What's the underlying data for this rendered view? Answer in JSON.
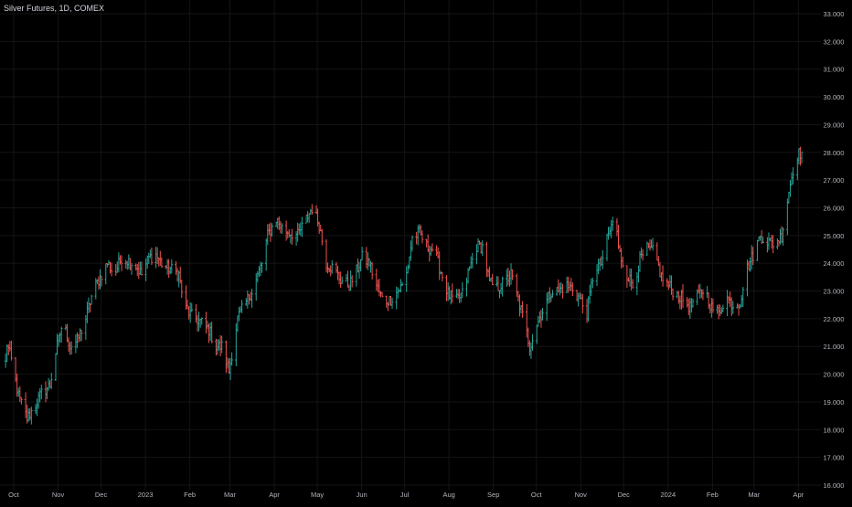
{
  "header": {
    "symbol_title": "Silver Futures, 1D, COMEX"
  },
  "colors": {
    "background": "#000000",
    "grid": "#141414",
    "up": "#26a69a",
    "down": "#ef5350",
    "axis_text": "#b2b5be"
  },
  "chart_data": {
    "type": "ohlc",
    "title": "Silver Futures, 1D, COMEX",
    "xlabel": "",
    "ylabel": "",
    "ylim": [
      16.0,
      33.0
    ],
    "y_ticks": [
      "16.000",
      "17.000",
      "18.000",
      "19.000",
      "20.000",
      "21.000",
      "22.000",
      "23.000",
      "24.000",
      "25.000",
      "26.000",
      "27.000",
      "28.000",
      "29.000",
      "30.000",
      "31.000",
      "32.000",
      "33.000"
    ],
    "x_tick_labels": [
      "Oct",
      "Nov",
      "Dec",
      "2023",
      "Feb",
      "Mar",
      "Apr",
      "May",
      "Jun",
      "Jul",
      "Aug",
      "Sep",
      "Oct",
      "Nov",
      "Dec",
      "2024",
      "Feb",
      "Mar",
      "Apr"
    ],
    "x_range": [
      "2022-10-01",
      "2024-04-11"
    ],
    "grid": true,
    "close_keypoints": [
      [
        "2022-10-01",
        19.0
      ],
      [
        "2022-10-04",
        21.1
      ],
      [
        "2022-10-08",
        20.3
      ],
      [
        "2022-10-12",
        19.2
      ],
      [
        "2022-10-18",
        18.4
      ],
      [
        "2022-10-24",
        18.9
      ],
      [
        "2022-10-28",
        19.3
      ],
      [
        "2022-11-03",
        19.6
      ],
      [
        "2022-11-07",
        20.8
      ],
      [
        "2022-11-12",
        21.9
      ],
      [
        "2022-11-17",
        21.0
      ],
      [
        "2022-11-22",
        21.2
      ],
      [
        "2022-11-28",
        22.0
      ],
      [
        "2022-12-03",
        23.0
      ],
      [
        "2022-12-08",
        23.5
      ],
      [
        "2022-12-13",
        24.0
      ],
      [
        "2022-12-18",
        23.6
      ],
      [
        "2022-12-23",
        24.2
      ],
      [
        "2022-12-28",
        24.1
      ],
      [
        "2023-01-02",
        23.9
      ],
      [
        "2023-01-06",
        23.6
      ],
      [
        "2023-01-11",
        24.2
      ],
      [
        "2023-01-16",
        24.3
      ],
      [
        "2023-01-21",
        23.9
      ],
      [
        "2023-01-26",
        23.8
      ],
      [
        "2023-02-01",
        23.6
      ],
      [
        "2023-02-05",
        22.4
      ],
      [
        "2023-02-10",
        22.1
      ],
      [
        "2023-02-16",
        21.9
      ],
      [
        "2023-02-22",
        21.6
      ],
      [
        "2023-02-27",
        21.0
      ],
      [
        "2023-03-03",
        21.0
      ],
      [
        "2023-03-08",
        20.1
      ],
      [
        "2023-03-14",
        22.0
      ],
      [
        "2023-03-20",
        22.6
      ],
      [
        "2023-03-25",
        23.1
      ],
      [
        "2023-03-31",
        24.0
      ],
      [
        "2023-04-04",
        25.0
      ],
      [
        "2023-04-10",
        25.6
      ],
      [
        "2023-04-15",
        25.2
      ],
      [
        "2023-04-20",
        25.1
      ],
      [
        "2023-04-25",
        25.0
      ],
      [
        "2023-04-30",
        25.5
      ],
      [
        "2023-05-05",
        26.0
      ],
      [
        "2023-05-10",
        25.4
      ],
      [
        "2023-05-15",
        24.0
      ],
      [
        "2023-05-20",
        23.8
      ],
      [
        "2023-05-25",
        23.4
      ],
      [
        "2023-05-31",
        23.2
      ],
      [
        "2023-06-04",
        23.6
      ],
      [
        "2023-06-09",
        24.2
      ],
      [
        "2023-06-14",
        24.0
      ],
      [
        "2023-06-19",
        23.2
      ],
      [
        "2023-06-24",
        22.6
      ],
      [
        "2023-06-29",
        22.7
      ],
      [
        "2023-07-04",
        23.0
      ],
      [
        "2023-07-09",
        23.3
      ],
      [
        "2023-07-14",
        24.9
      ],
      [
        "2023-07-19",
        25.1
      ],
      [
        "2023-07-24",
        24.6
      ],
      [
        "2023-07-29",
        24.5
      ],
      [
        "2023-08-03",
        23.7
      ],
      [
        "2023-08-08",
        22.9
      ],
      [
        "2023-08-13",
        22.6
      ],
      [
        "2023-08-18",
        22.9
      ],
      [
        "2023-08-23",
        23.8
      ],
      [
        "2023-08-28",
        24.6
      ],
      [
        "2023-09-01",
        24.6
      ],
      [
        "2023-09-06",
        23.3
      ],
      [
        "2023-09-11",
        23.1
      ],
      [
        "2023-09-16",
        23.3
      ],
      [
        "2023-09-21",
        23.6
      ],
      [
        "2023-09-26",
        22.7
      ],
      [
        "2023-10-01",
        21.7
      ],
      [
        "2023-10-04",
        21.0
      ],
      [
        "2023-10-09",
        21.8
      ],
      [
        "2023-10-14",
        22.4
      ],
      [
        "2023-10-19",
        23.0
      ],
      [
        "2023-10-24",
        23.0
      ],
      [
        "2023-10-29",
        23.2
      ],
      [
        "2023-11-03",
        23.1
      ],
      [
        "2023-11-08",
        22.7
      ],
      [
        "2023-11-13",
        22.2
      ],
      [
        "2023-11-18",
        23.8
      ],
      [
        "2023-11-23",
        24.0
      ],
      [
        "2023-11-28",
        25.0
      ],
      [
        "2023-12-03",
        25.8
      ],
      [
        "2023-12-05",
        24.5
      ],
      [
        "2023-12-10",
        23.7
      ],
      [
        "2023-12-15",
        23.2
      ],
      [
        "2023-12-20",
        24.1
      ],
      [
        "2023-12-25",
        24.5
      ],
      [
        "2023-12-30",
        24.4
      ],
      [
        "2024-01-04",
        23.5
      ],
      [
        "2024-01-09",
        23.2
      ],
      [
        "2024-01-14",
        22.9
      ],
      [
        "2024-01-19",
        22.7
      ],
      [
        "2024-01-24",
        22.4
      ],
      [
        "2024-01-29",
        22.8
      ],
      [
        "2024-02-03",
        23.1
      ],
      [
        "2024-02-08",
        22.4
      ],
      [
        "2024-02-13",
        22.2
      ],
      [
        "2024-02-18",
        22.8
      ],
      [
        "2024-02-23",
        22.5
      ],
      [
        "2024-02-28",
        22.6
      ],
      [
        "2024-03-03",
        23.7
      ],
      [
        "2024-03-08",
        24.3
      ],
      [
        "2024-03-13",
        25.0
      ],
      [
        "2024-03-18",
        24.8
      ],
      [
        "2024-03-23",
        24.7
      ],
      [
        "2024-03-28",
        25.0
      ],
      [
        "2024-04-02",
        26.6
      ],
      [
        "2024-04-07",
        27.9
      ],
      [
        "2024-04-11",
        28.0
      ]
    ]
  }
}
